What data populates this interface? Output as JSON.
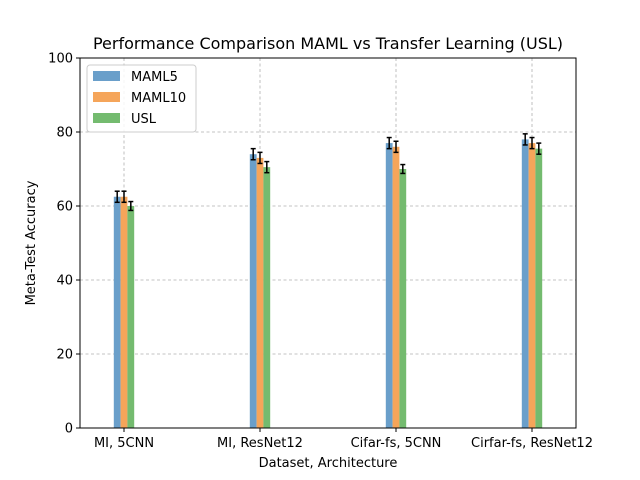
{
  "chart_data": {
    "type": "bar",
    "title": "Performance Comparison MAML vs Transfer Learning (USL)",
    "xlabel": "Dataset, Architecture",
    "ylabel": "Meta-Test Accuracy",
    "ylim": [
      0,
      100
    ],
    "yticks": [
      0,
      20,
      40,
      60,
      80,
      100
    ],
    "grid": true,
    "legend_position": "top-left",
    "categories": [
      "MI, 5CNN",
      "MI, ResNet12",
      "Cifar-fs, 5CNN",
      "Cirfar-fs, ResNet12"
    ],
    "series": [
      {
        "name": "MAML5",
        "color": "#6a9fca",
        "values": [
          62.5,
          74.0,
          77.0,
          78.0
        ],
        "errors": [
          1.5,
          1.5,
          1.5,
          1.5
        ]
      },
      {
        "name": "MAML10",
        "color": "#f5a55a",
        "values": [
          62.5,
          73.0,
          76.0,
          77.0
        ],
        "errors": [
          1.5,
          1.5,
          1.5,
          1.5
        ]
      },
      {
        "name": "USL",
        "color": "#74bb6f",
        "values": [
          60.0,
          70.5,
          70.0,
          75.5
        ],
        "errors": [
          1.2,
          1.5,
          1.2,
          1.5
        ]
      }
    ]
  }
}
